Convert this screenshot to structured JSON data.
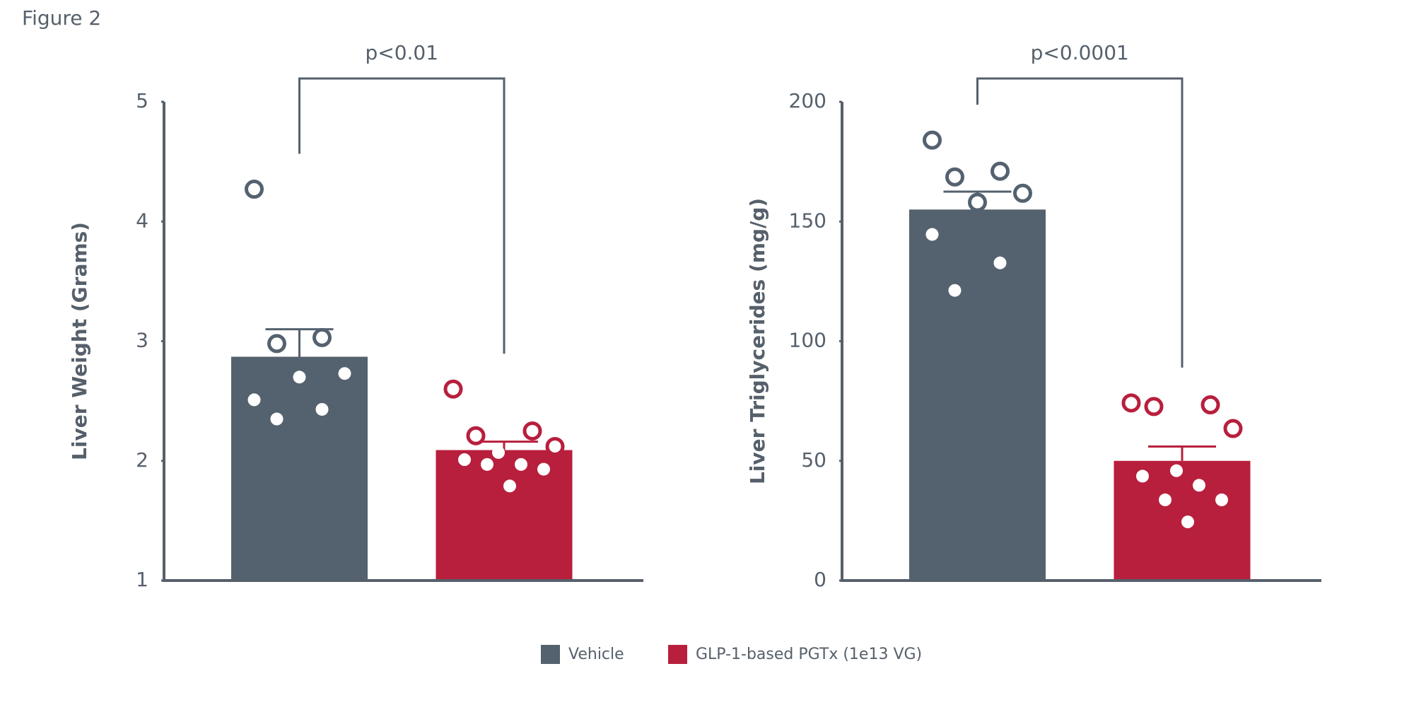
{
  "figure_label": "Figure 2",
  "legend": {
    "items": [
      {
        "name": "Vehicle",
        "color": "#54616e"
      },
      {
        "name": "GLP-1-based PGTx (1e13 VG)",
        "color": "#b81f3d"
      }
    ]
  },
  "chart_data": [
    {
      "type": "bar",
      "y_label": "Liver Weight (Grams)",
      "annotation": "p<0.01",
      "ylim": [
        1,
        5
      ],
      "yticks": [
        1,
        2,
        3,
        4,
        5
      ],
      "values": [
        2.87,
        2.09
      ],
      "errors": [
        0.23,
        0.07
      ],
      "points": [
        [
          4.27,
          3.03,
          2.98,
          2.73,
          2.7,
          2.51,
          2.43,
          2.35
        ],
        [
          2.6,
          2.25,
          2.21,
          2.12,
          2.07,
          2.01,
          1.97,
          1.97,
          1.93,
          1.79
        ]
      ]
    },
    {
      "type": "bar",
      "y_label": "Liver Triglycerides (mg/g)",
      "annotation": "p<0.0001",
      "ylim": [
        0,
        200
      ],
      "yticks": [
        0,
        50,
        100,
        150,
        200
      ],
      "values": [
        155,
        50
      ],
      "errors": [
        7.5,
        6
      ],
      "points": [
        [
          184,
          171,
          168.6,
          161.8,
          158,
          144.6,
          132.7,
          121.2
        ],
        [
          74.2,
          73.4,
          72.7,
          63.5,
          45.9,
          43.6,
          39.8,
          33.7,
          33.7,
          24.5
        ]
      ]
    }
  ]
}
